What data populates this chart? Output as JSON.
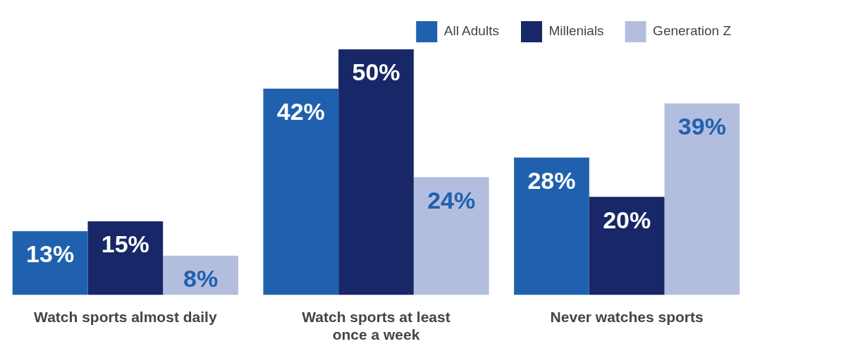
{
  "chart_data": {
    "type": "bar",
    "categories": [
      "Watch sports almost daily",
      "Watch sports at least once a week",
      "Never watches sports"
    ],
    "series": [
      {
        "name": "All Adults",
        "color": "#1f61ae",
        "values": [
          13,
          42,
          28
        ],
        "value_labels": [
          "13%",
          "42%",
          "28%"
        ]
      },
      {
        "name": "Millenials",
        "color": "#172768",
        "values": [
          15,
          50,
          20
        ],
        "value_labels": [
          "15%",
          "50%",
          "20%"
        ]
      },
      {
        "name": "Generation Z",
        "color": "#b3bedf",
        "values": [
          8,
          24,
          39
        ],
        "value_labels": [
          "8%",
          "24%",
          "39%"
        ]
      }
    ],
    "grid": false,
    "legend": "top right",
    "tick_labels": "x"
  }
}
